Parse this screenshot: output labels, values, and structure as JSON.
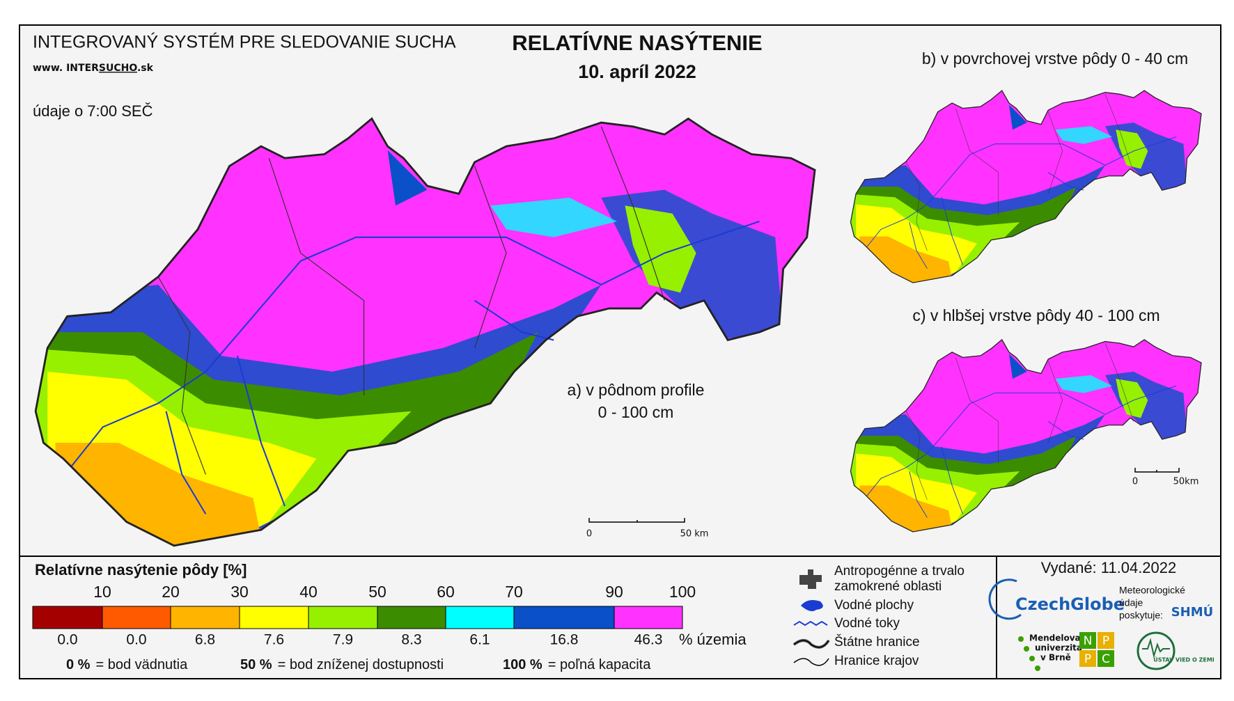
{
  "header": {
    "system": "INTEGROVANÝ SYSTÉM PRE SLEDOVANIE SUCHA",
    "web_prefix": "www. INTER",
    "web_mid": "SUCHO",
    "web_suffix": ".sk",
    "title": "RELATÍVNE NASÝTENIE",
    "date": "10. apríl 2022",
    "data_time": "údaje o 7:00 SEČ"
  },
  "maps": {
    "a_line1": "a) v pôdnom profile",
    "a_line2": "0 - 100 cm",
    "b": "b) v povrchovej vrstve pôdy 0 - 40 cm",
    "c": "c) v hlbšej vrstve pôdy 40 - 100 cm",
    "scale_zero": "0",
    "scale_main": "50 km",
    "scale_small": "50km"
  },
  "legend": {
    "title": "Relatívne nasýtenie pôdy [%]",
    "edges": [
      10,
      20,
      30,
      40,
      50,
      60,
      70,
      90,
      100
    ],
    "classes": [
      {
        "color": "#a50000",
        "share": "0.0"
      },
      {
        "color": "#ff5a00",
        "share": "0.0"
      },
      {
        "color": "#ffb400",
        "share": "6.8"
      },
      {
        "color": "#ffff00",
        "share": "7.6"
      },
      {
        "color": "#96f000",
        "share": "7.9"
      },
      {
        "color": "#3c8c00",
        "share": "8.3"
      },
      {
        "color": "#00ffff",
        "share": "6.1"
      },
      {
        "color": "#0a50c8",
        "share": "16.8"
      },
      {
        "color": "#ff32ff",
        "share": "46.3"
      }
    ],
    "unit": "% územia",
    "notes": [
      {
        "key": "0 %",
        "text": "= bod vädnutia"
      },
      {
        "key": "50 %",
        "text": "= bod zníženej dostupnosti"
      },
      {
        "key": "100 %",
        "text": "= poľná kapacita"
      }
    ]
  },
  "map_legend": [
    "Antropogénne a trvalo",
    "zamokrené oblasti",
    "Vodné plochy",
    "Vodné toky",
    "Štátne hranice",
    "Hranice krajov"
  ],
  "footer": {
    "issued": "Vydané: 11.04.2022",
    "czechglobe": "CzechGlobe",
    "meteo": [
      "Meteorologické",
      "údaje",
      "poskytuje:"
    ],
    "shmu": "SHMÚ",
    "mendel": [
      "Mendelova",
      "univerzita",
      "v Brně"
    ],
    "nppc": [
      "N",
      "P",
      "P",
      "C"
    ],
    "uvz": "ÚSTAV VIED O ZEMI"
  }
}
